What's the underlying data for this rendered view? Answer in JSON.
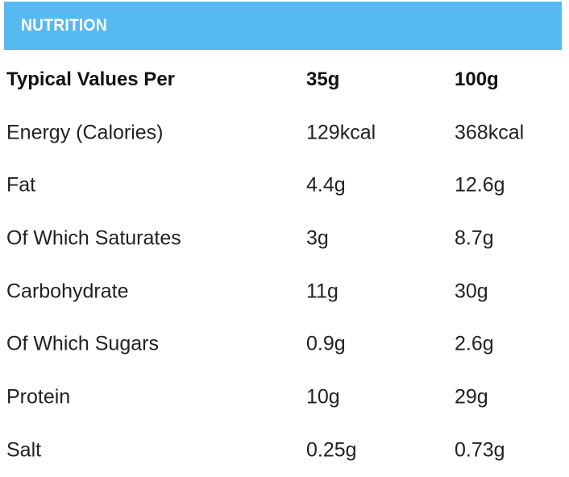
{
  "header": {
    "title": "NUTRITION"
  },
  "table": {
    "columns": [
      "Typical Values Per",
      "35g",
      "100g"
    ],
    "rows": [
      {
        "label": "Energy (Calories)",
        "per_35g": "129kcal",
        "per_100g": "368kcal"
      },
      {
        "label": "Fat",
        "per_35g": "4.4g",
        "per_100g": "12.6g"
      },
      {
        "label": "Of Which Saturates",
        "per_35g": "3g",
        "per_100g": "8.7g"
      },
      {
        "label": "Carbohydrate",
        "per_35g": "11g",
        "per_100g": "30g"
      },
      {
        "label": "Of Which Sugars",
        "per_35g": "0.9g",
        "per_100g": "2.6g"
      },
      {
        "label": "Protein",
        "per_35g": "10g",
        "per_100g": "29g"
      },
      {
        "label": "Salt",
        "per_35g": "0.25g",
        "per_100g": "0.73g"
      }
    ]
  },
  "colors": {
    "header_background": "#56b9f2",
    "header_text": "#ffffff",
    "body_text": "#222222"
  }
}
